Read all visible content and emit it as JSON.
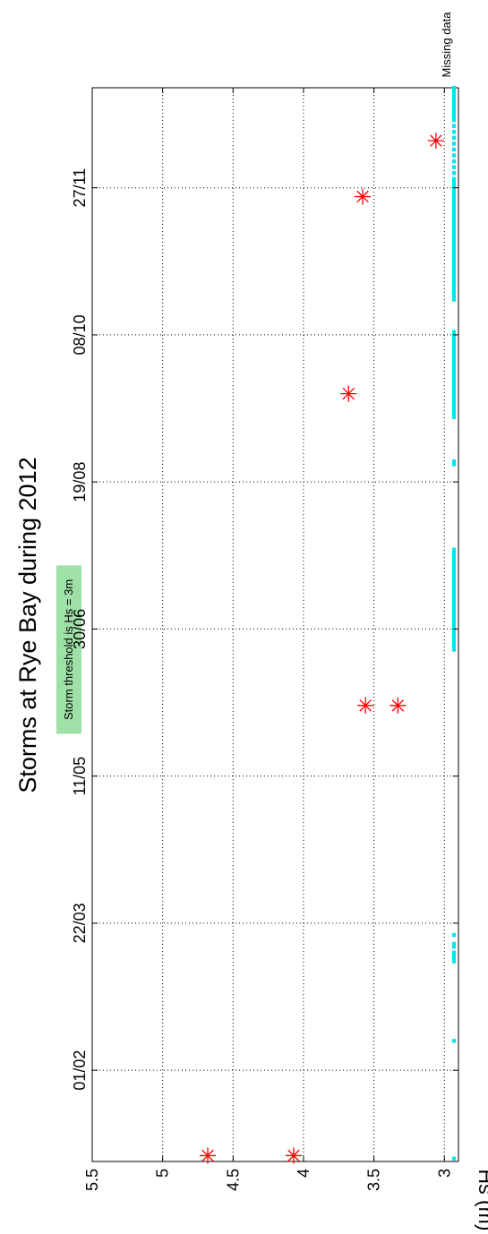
{
  "chart_data": {
    "type": "scatter",
    "title": "Storms at Rye Bay during 2012",
    "ylabel": "Hs (m)",
    "xlabel": "",
    "ylim": [
      2.9,
      5.5
    ],
    "y_ticks": [
      "3",
      "3.5",
      "4",
      "4.5",
      "5",
      "5.5"
    ],
    "x_range_dates": [
      "2012-01-01",
      "2012-12-31"
    ],
    "x_ticks": [
      {
        "date": "2012-02-01",
        "label": "01/02"
      },
      {
        "date": "2012-03-22",
        "label": "22/03"
      },
      {
        "date": "2012-05-11",
        "label": "11/05"
      },
      {
        "date": "2012-06-30",
        "label": "30/06"
      },
      {
        "date": "2012-08-19",
        "label": "19/08"
      },
      {
        "date": "2012-10-08",
        "label": "08/10"
      },
      {
        "date": "2012-11-27",
        "label": "27/11"
      }
    ],
    "grid": true,
    "orientation": "rotated 90° clockwise",
    "marker_color": "#ff0000",
    "missing_color": "#00e5ee",
    "storms": [
      {
        "date": "2012-01-03",
        "hs": 4.68
      },
      {
        "date": "2012-01-03",
        "hs": 4.07
      },
      {
        "date": "2012-06-04",
        "hs": 3.56
      },
      {
        "date": "2012-06-04",
        "hs": 3.33
      },
      {
        "date": "2012-09-18",
        "hs": 3.68
      },
      {
        "date": "2012-11-24",
        "hs": 3.58
      },
      {
        "date": "2012-12-13",
        "hs": 3.06
      }
    ],
    "missing_data_label": "Missing data",
    "missing_data_dates": [
      "2012-01-02",
      "2012-02-11",
      "2012-03-09",
      "2012-03-10",
      "2012-03-11",
      "2012-03-12",
      "2012-03-14",
      "2012-03-15",
      "2012-03-18",
      "2012-06-23",
      "2012-06-24",
      "2012-06-25",
      "2012-06-26",
      "2012-06-27",
      "2012-06-28",
      "2012-06-29",
      "2012-06-30",
      "2012-07-01",
      "2012-07-02",
      "2012-07-03",
      "2012-07-04",
      "2012-07-05",
      "2012-07-06",
      "2012-07-07",
      "2012-07-08",
      "2012-07-09",
      "2012-07-10",
      "2012-07-11",
      "2012-07-12",
      "2012-07-13",
      "2012-07-14",
      "2012-07-15",
      "2012-07-16",
      "2012-07-17",
      "2012-07-18",
      "2012-07-19",
      "2012-07-20",
      "2012-07-21",
      "2012-07-22",
      "2012-07-23",
      "2012-07-24",
      "2012-07-25",
      "2012-07-26",
      "2012-07-27",
      "2012-08-25",
      "2012-08-26",
      "2012-09-10",
      "2012-09-11",
      "2012-09-12",
      "2012-09-13",
      "2012-09-14",
      "2012-09-15",
      "2012-09-16",
      "2012-09-17",
      "2012-09-18",
      "2012-09-19",
      "2012-09-20",
      "2012-09-21",
      "2012-09-22",
      "2012-09-23",
      "2012-09-24",
      "2012-09-25",
      "2012-09-26",
      "2012-09-27",
      "2012-09-28",
      "2012-09-29",
      "2012-09-30",
      "2012-10-01",
      "2012-10-02",
      "2012-10-03",
      "2012-10-04",
      "2012-10-05",
      "2012-10-06",
      "2012-10-07",
      "2012-10-08",
      "2012-10-09",
      "2012-10-20",
      "2012-10-21",
      "2012-10-22",
      "2012-10-23",
      "2012-10-24",
      "2012-10-25",
      "2012-10-26",
      "2012-10-27",
      "2012-10-28",
      "2012-10-29",
      "2012-10-30",
      "2012-10-31",
      "2012-11-01",
      "2012-11-02",
      "2012-11-03",
      "2012-11-04",
      "2012-11-05",
      "2012-11-06",
      "2012-11-07",
      "2012-11-08",
      "2012-11-09",
      "2012-11-10",
      "2012-11-11",
      "2012-11-12",
      "2012-11-13",
      "2012-11-14",
      "2012-11-15",
      "2012-11-16",
      "2012-11-17",
      "2012-11-18",
      "2012-11-19",
      "2012-11-20",
      "2012-11-21",
      "2012-11-22",
      "2012-11-23",
      "2012-11-24",
      "2012-11-25",
      "2012-11-26",
      "2012-11-27",
      "2012-11-28",
      "2012-11-29",
      "2012-11-30",
      "2012-12-02",
      "2012-12-04",
      "2012-12-06",
      "2012-12-08",
      "2012-12-10",
      "2012-12-12",
      "2012-12-14",
      "2012-12-16",
      "2012-12-18",
      "2012-12-20",
      "2012-12-21",
      "2012-12-22",
      "2012-12-23",
      "2012-12-24",
      "2012-12-25",
      "2012-12-26",
      "2012-12-27",
      "2012-12-28",
      "2012-12-29",
      "2012-12-30",
      "2012-12-31"
    ],
    "annotation": {
      "text": "Storm threshold is Hs = 3m",
      "date": "2012-06-23",
      "color": "#9ee0a6"
    }
  }
}
